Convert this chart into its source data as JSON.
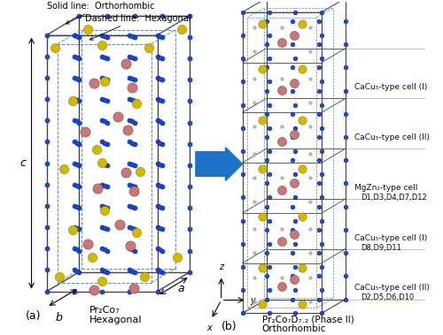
{
  "fig_width": 5.0,
  "fig_height": 3.79,
  "bg_color": "#ffffff",
  "arrow_color": "#1e72c8",
  "blue_color": "#1a4fc4",
  "yellow_color": "#d4b800",
  "pink_color": "#c87878",
  "gray_color": "#b8b8b8",
  "line_color": "#444444",
  "dashed_color": "#6688aa",
  "label_fontsize": 8,
  "annotation_fontsize": 7,
  "cell_label_fontsize": 6.5,
  "subtitle_a_line1": "Pr₂Co₇",
  "subtitle_a_line2": "Hexagonal",
  "subtitle_b_line1": "Pr₂Co₇D₇.₂ (Phase II)",
  "subtitle_b_line2": "Orthorhombic",
  "cell_labels_line1": [
    "CaCu₅-type cell (I)",
    "CaCu₅-type cell (II)",
    "MgZn₂-type cell",
    "CaCu₅-type cell (I)",
    "CaCu₅-type cell (II)"
  ],
  "cell_labels_line2": [
    "",
    "",
    "D1,D3,D4,D7,D12",
    "D8,D9,D11",
    "D2,D5,D6,D10"
  ]
}
